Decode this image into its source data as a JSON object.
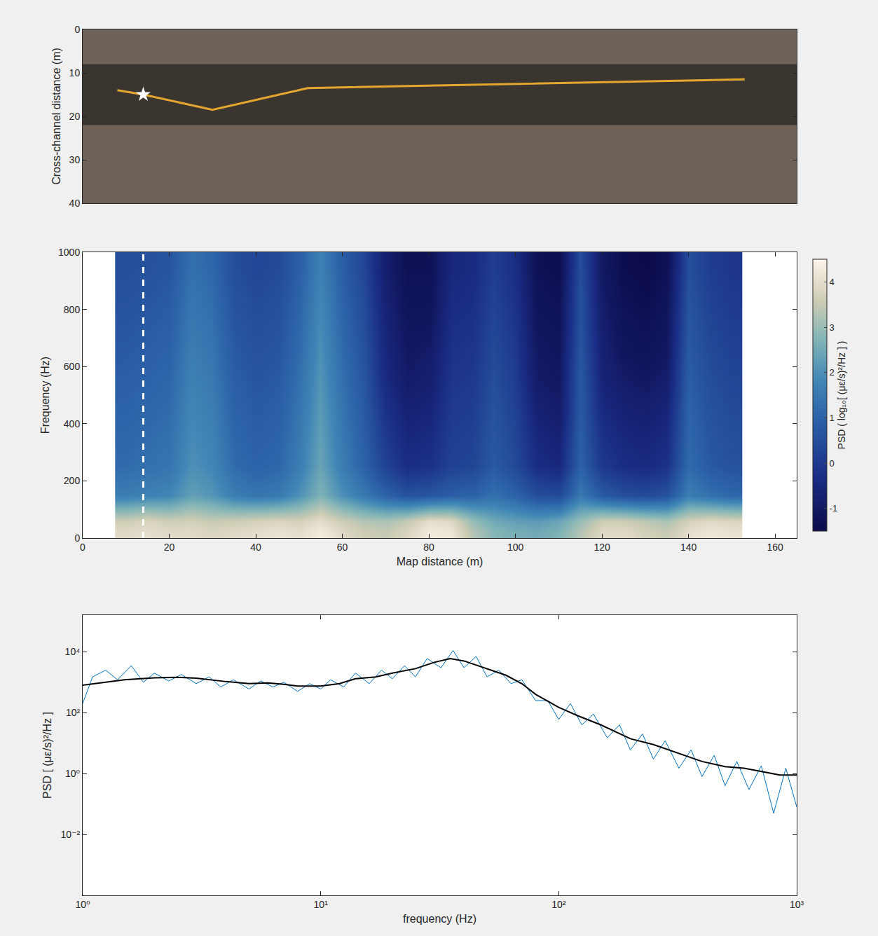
{
  "chart_data": [
    {
      "type": "map",
      "ylabel": "Cross-channel distance (m)",
      "xlim": [
        0,
        165
      ],
      "ylim": [
        40,
        0
      ],
      "yticks": [
        0,
        10,
        20,
        30,
        40
      ],
      "tick_labels": "y",
      "grid": false,
      "series": [
        {
          "color": "#e3a72f",
          "x": [
            8,
            14,
            30,
            50,
            52,
            153
          ],
          "values": [
            14,
            15,
            18.5,
            14,
            13.5,
            11.5
          ]
        },
        {
          "color": "#ffffff",
          "marker": "star",
          "x": [
            14
          ],
          "values": [
            15
          ]
        }
      ]
    },
    {
      "type": "heatmap",
      "xlabel": "Map distance (m)",
      "ylabel": "Frequency (Hz)",
      "xlim": [
        0,
        165
      ],
      "xticks": [
        0,
        20,
        40,
        60,
        80,
        100,
        120,
        140,
        160
      ],
      "ylim": [
        0,
        1000
      ],
      "yticks": [
        0,
        200,
        400,
        600,
        800,
        1000
      ],
      "grid": false,
      "x": [
        10,
        15,
        20,
        25,
        30,
        35,
        40,
        45,
        50,
        55,
        60,
        65,
        70,
        75,
        80,
        85,
        90,
        95,
        100,
        105,
        110,
        115,
        120,
        125,
        130,
        135,
        140,
        145,
        150
      ],
      "y": [
        20,
        60,
        150,
        250,
        350,
        450,
        550,
        650,
        750,
        850,
        950
      ],
      "z": [
        [
          3.9,
          4.0,
          3.9,
          3.9,
          3.8,
          3.9,
          4.0,
          4.1,
          4.0,
          4.3,
          3.9,
          3.6,
          3.5,
          3.8,
          4.3,
          4.2,
          3.3,
          2.8,
          2.6,
          2.5,
          2.7,
          3.3,
          3.9,
          3.9,
          3.7,
          3.5,
          4.0,
          4.2,
          4.1
        ],
        [
          3.6,
          3.8,
          3.6,
          3.7,
          3.5,
          3.6,
          3.7,
          3.8,
          3.7,
          4.0,
          3.6,
          3.3,
          3.2,
          3.5,
          4.0,
          3.9,
          3.0,
          2.5,
          2.3,
          2.2,
          2.4,
          3.0,
          3.6,
          3.6,
          3.4,
          3.2,
          3.7,
          3.9,
          3.8
        ],
        [
          1.6,
          1.7,
          1.8,
          2.3,
          2.1,
          1.6,
          1.4,
          1.5,
          2.0,
          2.7,
          2.0,
          1.5,
          1.0,
          0.6,
          0.7,
          0.9,
          1.0,
          1.3,
          1.0,
          0.5,
          0.4,
          1.5,
          0.8,
          0.5,
          0.4,
          0.6,
          1.6,
          1.3,
          1.1
        ],
        [
          1.2,
          1.3,
          1.4,
          2.0,
          1.8,
          1.2,
          1.0,
          1.1,
          1.6,
          2.4,
          1.6,
          1.0,
          0.2,
          -0.3,
          -0.2,
          0.2,
          0.3,
          0.8,
          0.4,
          -0.3,
          -0.5,
          1.0,
          0.0,
          -0.3,
          -0.4,
          -0.2,
          1.2,
          0.8,
          0.6
        ],
        [
          1.1,
          1.2,
          1.3,
          1.9,
          1.7,
          1.1,
          0.9,
          1.0,
          1.5,
          2.3,
          1.5,
          0.9,
          0.0,
          -0.5,
          -0.4,
          0.1,
          0.2,
          0.7,
          0.3,
          -0.5,
          -0.7,
          0.9,
          -0.2,
          -0.5,
          -0.6,
          -0.4,
          1.1,
          0.7,
          0.5
        ],
        [
          1.0,
          1.1,
          1.2,
          1.8,
          1.6,
          1.0,
          0.8,
          0.9,
          1.4,
          2.2,
          1.4,
          0.8,
          -0.2,
          -0.7,
          -0.6,
          0.0,
          0.1,
          0.6,
          0.2,
          -0.7,
          -0.9,
          0.8,
          -0.4,
          -0.7,
          -0.8,
          -0.6,
          1.0,
          0.6,
          0.4
        ],
        [
          0.9,
          1.0,
          1.1,
          1.7,
          1.5,
          0.9,
          0.7,
          0.8,
          1.3,
          2.1,
          1.3,
          0.7,
          -0.4,
          -0.9,
          -0.8,
          -0.1,
          0.0,
          0.5,
          0.1,
          -0.9,
          -1.0,
          0.8,
          -0.6,
          -0.9,
          -1.0,
          -0.8,
          0.9,
          0.5,
          0.3
        ],
        [
          0.8,
          0.9,
          1.0,
          1.6,
          1.4,
          0.8,
          0.6,
          0.7,
          1.2,
          2.0,
          1.2,
          0.6,
          -0.5,
          -1.0,
          -0.9,
          -0.2,
          -0.1,
          0.4,
          0.0,
          -1.0,
          -1.1,
          0.7,
          -0.7,
          -1.1,
          -1.2,
          -1.0,
          0.8,
          0.4,
          0.2
        ],
        [
          0.7,
          0.8,
          0.9,
          1.5,
          1.3,
          0.7,
          0.5,
          0.6,
          1.1,
          1.9,
          1.1,
          0.5,
          -0.6,
          -1.1,
          -1.1,
          -0.3,
          -0.2,
          0.3,
          -0.1,
          -1.1,
          -1.2,
          0.6,
          -0.8,
          -1.2,
          -1.3,
          -1.1,
          0.7,
          0.3,
          0.1
        ],
        [
          0.6,
          0.7,
          0.8,
          1.4,
          1.2,
          0.6,
          0.4,
          0.5,
          1.0,
          1.8,
          1.0,
          0.4,
          -0.7,
          -1.2,
          -1.2,
          -0.4,
          -0.3,
          0.2,
          -0.2,
          -1.2,
          -1.3,
          0.6,
          -0.9,
          -1.3,
          -1.4,
          -1.2,
          0.6,
          0.2,
          0.0
        ],
        [
          0.5,
          0.6,
          0.7,
          1.3,
          1.1,
          0.5,
          0.3,
          0.4,
          0.9,
          1.7,
          0.9,
          0.3,
          -0.8,
          -1.3,
          -1.3,
          -0.5,
          -0.4,
          0.1,
          -0.3,
          -1.3,
          -1.4,
          0.5,
          -1.0,
          -1.4,
          -1.5,
          -1.3,
          0.5,
          0.1,
          -0.1
        ]
      ],
      "colorbar": {
        "title": "PSD ( log₁₀[ (με/s)²/Hz ] )",
        "range": [
          -1.5,
          4.5
        ],
        "ticks": [
          -1,
          0,
          1,
          2,
          3,
          4
        ]
      },
      "vline": {
        "x": 14,
        "color": "#ffffff",
        "line_style": "dash"
      }
    },
    {
      "type": "line",
      "log": true,
      "grid": false,
      "xlabel": "frequency (Hz)",
      "ylabel": "PSD [ (με/s)²/Hz ]",
      "xlim": [
        1,
        1000
      ],
      "ylim": [
        0.0001,
        160000
      ],
      "xticks": [
        {
          "value": 1,
          "label": "10⁰"
        },
        {
          "value": 10,
          "label": "10¹"
        },
        {
          "value": 100,
          "label": "10²"
        },
        {
          "value": 1000,
          "label": "10³"
        }
      ],
      "yticks": [
        {
          "value": 0.01,
          "label": "10⁻²"
        },
        {
          "value": 1,
          "label": "10⁰"
        },
        {
          "value": 100,
          "label": "10²"
        },
        {
          "value": 10000,
          "label": "10⁴"
        }
      ],
      "series": [
        {
          "color": "#0072bd",
          "x": [
            1,
            1.1,
            1.25,
            1.4,
            1.6,
            1.8,
            2,
            2.3,
            2.6,
            3,
            3.4,
            3.8,
            4.3,
            5,
            5.6,
            6.3,
            7,
            8,
            9,
            10,
            11,
            12.5,
            14,
            16,
            18,
            20,
            22.5,
            25,
            28,
            32,
            36,
            40,
            45,
            50,
            56,
            63,
            70,
            80,
            90,
            100,
            112,
            125,
            140,
            160,
            180,
            200,
            225,
            250,
            280,
            320,
            360,
            400,
            450,
            500,
            560,
            630,
            710,
            800,
            900,
            1000
          ],
          "values": [
            200,
            1500,
            2500,
            1200,
            3500,
            1000,
            2000,
            1100,
            1800,
            900,
            1500,
            700,
            1200,
            600,
            1100,
            700,
            1000,
            500,
            900,
            600,
            1200,
            700,
            2000,
            900,
            2500,
            1300,
            3500,
            1500,
            6000,
            3000,
            11000,
            3000,
            7000,
            1500,
            2500,
            900,
            1200,
            250,
            250,
            60,
            200,
            40,
            90,
            15,
            40,
            6,
            20,
            3,
            12,
            1.5,
            6,
            0.8,
            4,
            0.4,
            2.5,
            0.3,
            1.8,
            0.05,
            1.5,
            0.08
          ]
        },
        {
          "color": "#000000",
          "x": [
            1,
            1.5,
            2,
            2.5,
            3,
            4,
            5,
            6,
            7,
            8,
            10,
            12,
            14,
            17,
            20,
            25,
            30,
            35,
            40,
            50,
            60,
            70,
            80,
            100,
            120,
            150,
            200,
            250,
            300,
            400,
            500,
            600,
            700,
            850,
            1000
          ],
          "values": [
            800,
            1200,
            1400,
            1450,
            1350,
            1050,
            900,
            950,
            850,
            750,
            750,
            900,
            1300,
            1500,
            2000,
            2800,
            4500,
            6000,
            5000,
            2800,
            1700,
            900,
            400,
            150,
            80,
            40,
            14,
            9,
            5.5,
            2.5,
            1.7,
            1.5,
            1.2,
            0.9,
            0.9
          ]
        }
      ]
    }
  ]
}
